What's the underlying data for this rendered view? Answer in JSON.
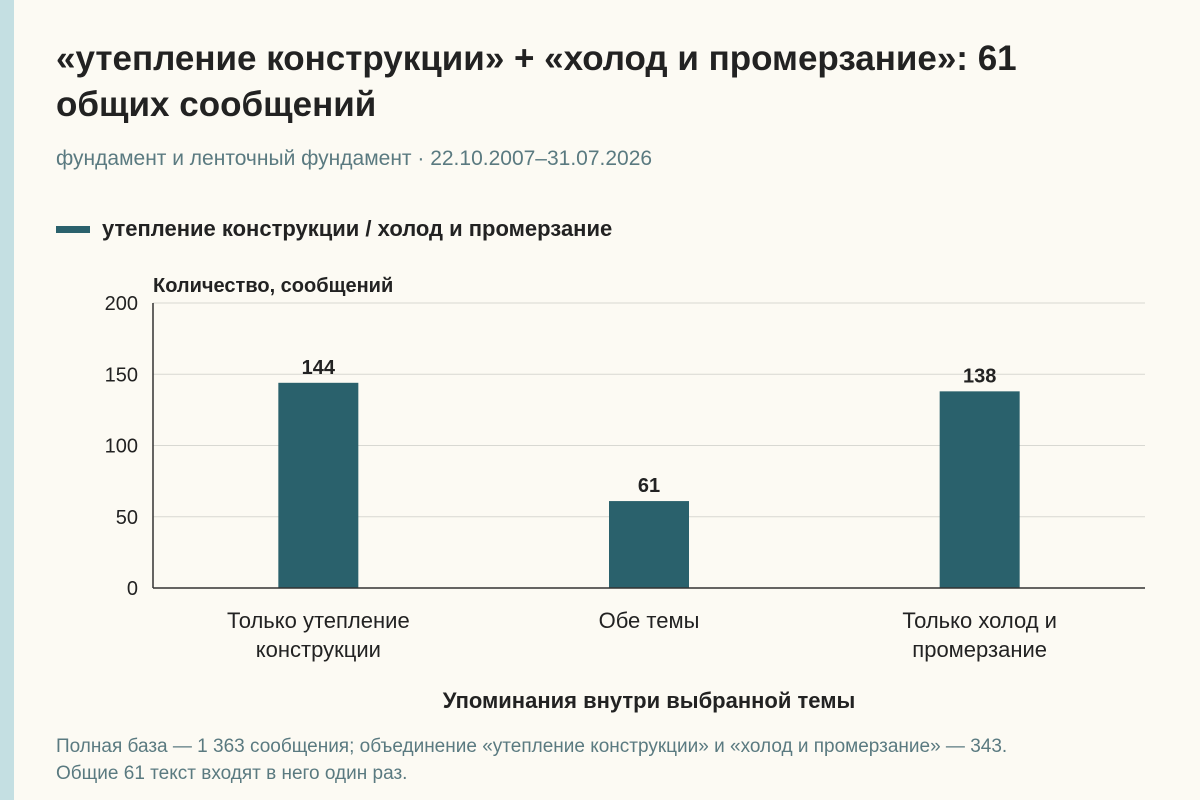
{
  "title": "«утепление конструкции» + «холод и промерзание»: 61 общих сообщений",
  "subtitle": "фундамент и ленточный фундамент · 22.10.2007–31.07.2026",
  "colors": {
    "bar": "#2a616c",
    "accent_stripe": "#c4dfe2",
    "background": "#fcfaf3",
    "muted_text": "#5a7a80"
  },
  "chart_data": {
    "type": "bar",
    "categories": [
      "Только утепление конструкции",
      "Обе темы",
      "Только холод и промерзание"
    ],
    "series": [
      {
        "name": "утепление конструкции / холод и промерзание",
        "values": [
          144,
          61,
          138
        ]
      }
    ],
    "ylabel": "Количество, сообщений",
    "xlabel": "Упоминания внутри выбранной темы",
    "ylim": [
      0,
      200
    ],
    "yticks": [
      0,
      50,
      100,
      150,
      200
    ],
    "grid": true,
    "legend": "top-left",
    "data_labels": true
  },
  "footnote": "Полная база — 1 363 сообщения; объединение «утепление конструкции» и «холод и промерзание» — 343. Общие 61 текст входят в него один раз."
}
